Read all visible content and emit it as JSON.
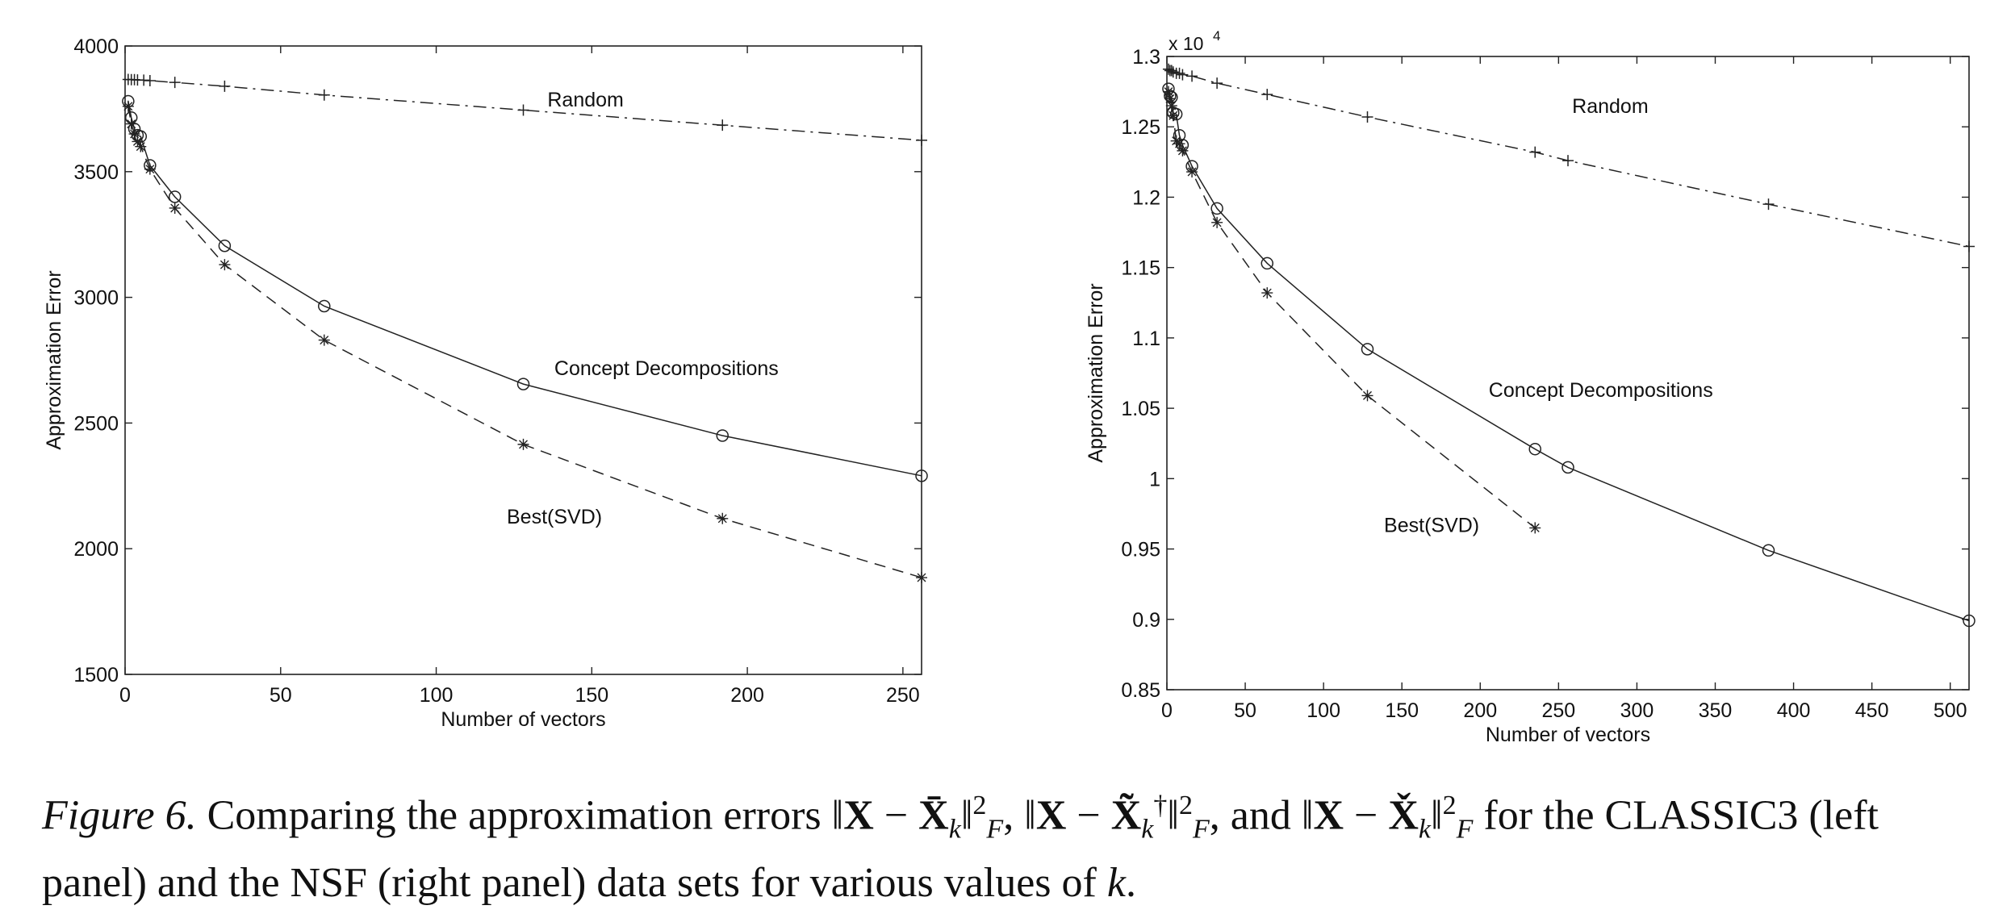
{
  "chart_data": [
    {
      "type": "line",
      "xlabel": "Number of vectors",
      "ylabel": "Approximation Error",
      "xlim": [
        0,
        256
      ],
      "ylim": [
        1500,
        4000
      ],
      "x_ticks": [
        "0",
        "50",
        "100",
        "150",
        "200",
        "250"
      ],
      "y_ticks": [
        "1500",
        "2000",
        "2500",
        "3000",
        "3500",
        "4000"
      ],
      "exponent_label": "",
      "grid": false,
      "series": [
        {
          "name": "Random",
          "style": "dashdot",
          "marker": "plus",
          "label_anchor": [
            148,
            3760
          ],
          "x": [
            1,
            2,
            3,
            4,
            6,
            8,
            16,
            32,
            64,
            128,
            192,
            256
          ],
          "y": [
            3867,
            3866,
            3866,
            3865,
            3864,
            3862,
            3855,
            3840,
            3805,
            3745,
            3685,
            3625
          ]
        },
        {
          "name": "Concept Decompositions",
          "style": "solid",
          "marker": "circle",
          "label_anchor": [
            174,
            2690
          ],
          "x": [
            1,
            2,
            3,
            4,
            5,
            8,
            16,
            32,
            64,
            128,
            192,
            256
          ],
          "y": [
            3780,
            3715,
            3670,
            3645,
            3640,
            3525,
            3400,
            3205,
            2965,
            2655,
            2450,
            2290
          ],
          "markers_x": [
            1,
            2,
            3,
            4,
            5,
            8,
            16,
            32,
            64,
            128,
            192,
            256
          ]
        },
        {
          "name": "Best(SVD)",
          "style": "dashed",
          "marker": "star",
          "label_anchor": [
            138,
            2100
          ],
          "x": [
            1,
            2,
            3,
            4,
            5,
            8,
            16,
            32,
            64,
            128,
            192,
            256
          ],
          "y": [
            3760,
            3690,
            3650,
            3620,
            3600,
            3510,
            3355,
            3130,
            2830,
            2415,
            2120,
            1885
          ],
          "markers_x": [
            1,
            2,
            3,
            4,
            5,
            8,
            16,
            32,
            64,
            128,
            192,
            256
          ]
        }
      ]
    },
    {
      "type": "line",
      "xlabel": "Number of vectors",
      "ylabel": "Approximation Error",
      "xlim": [
        0,
        512
      ],
      "ylim": [
        0.85,
        1.3
      ],
      "x_ticks": [
        "0",
        "50",
        "100",
        "150",
        "200",
        "250",
        "300",
        "350",
        "400",
        "450",
        "500"
      ],
      "y_ticks": [
        "0.85",
        "0.9",
        "0.95",
        "1",
        "1.05",
        "1.1",
        "1.15",
        "1.2",
        "1.25",
        "1.3"
      ],
      "exponent_label": "x 10",
      "exponent_power": "4",
      "grid": false,
      "series": [
        {
          "name": "Random",
          "style": "dashdot",
          "marker": "plus",
          "label_anchor": [
            283,
            1.26
          ],
          "x": [
            1,
            2,
            3,
            4,
            6,
            8,
            10,
            16,
            32,
            64,
            128,
            235,
            256,
            384,
            512
          ],
          "y": [
            1.291,
            1.29,
            1.29,
            1.289,
            1.288,
            1.288,
            1.287,
            1.286,
            1.281,
            1.273,
            1.257,
            1.232,
            1.226,
            1.195,
            1.165
          ]
        },
        {
          "name": "Concept Decompositions",
          "style": "solid",
          "marker": "circle",
          "label_anchor": [
            277,
            1.058
          ],
          "x": [
            1,
            2,
            3,
            4,
            6,
            8,
            10,
            16,
            32,
            64,
            128,
            235,
            256,
            384,
            512
          ],
          "y": [
            1.277,
            1.272,
            1.271,
            1.26,
            1.259,
            1.244,
            1.237,
            1.222,
            1.192,
            1.153,
            1.092,
            1.021,
            1.008,
            0.949,
            0.899
          ]
        },
        {
          "name": "Best(SVD)",
          "style": "dashed",
          "marker": "star",
          "label_anchor": [
            169,
            0.962
          ],
          "x": [
            1,
            2,
            3,
            4,
            6,
            8,
            10,
            16,
            32,
            64,
            128,
            235
          ],
          "y": [
            1.275,
            1.27,
            1.265,
            1.258,
            1.24,
            1.238,
            1.233,
            1.218,
            1.182,
            1.132,
            1.059,
            0.965
          ]
        }
      ]
    }
  ],
  "caption": {
    "figure_label": "Figure 6.",
    "lead": "Comparing the approximation errors",
    "norm1_sub": "k",
    "norm2_sub": "k",
    "norm2_sup": "†",
    "norm3_sub": "k",
    "norm_power": "2",
    "norm_sub_F": "F",
    "sep1": ",",
    "sep2": ", and",
    "mid": "for the CLASSIC3 (left panel) and the NSF (right panel) data sets for various values of",
    "variable": "k",
    "end": "."
  }
}
